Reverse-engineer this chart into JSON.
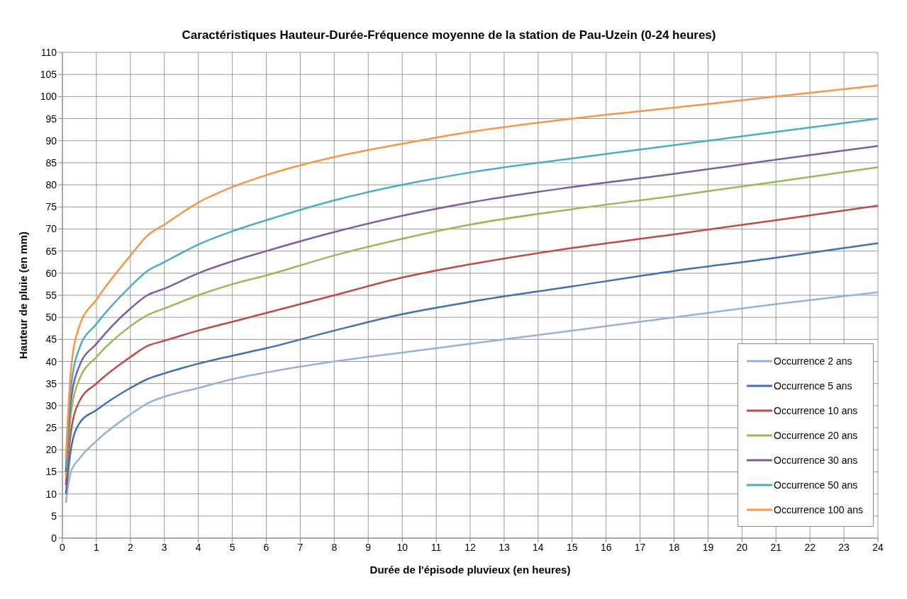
{
  "chart_data": {
    "type": "line",
    "title": "Caractéristiques Hauteur-Durée-Fréquence moyenne de la station de Pau-Uzein (0-24 heures)",
    "xlabel": "Durée de l'épisode pluvieux (en heures)",
    "ylabel": "Hauteur de pluie (en mm)",
    "x": [
      0.1,
      0.25,
      0.5,
      1,
      2,
      2.5,
      3,
      4,
      5,
      6,
      8,
      10,
      12,
      15,
      18,
      21,
      24
    ],
    "series": [
      {
        "name": "Occurrence 2 ans",
        "color": "#95b3d7",
        "values": [
          8,
          15,
          18,
          22,
          28,
          30.5,
          32,
          34,
          36,
          37.5,
          40,
          42,
          44,
          47,
          50,
          53,
          55.7
        ]
      },
      {
        "name": "Occurrence 5 ans",
        "color": "#3f6fb4",
        "values": [
          10,
          20,
          26,
          29,
          34,
          36,
          37.3,
          39.5,
          41.3,
          43,
          47,
          50.7,
          53.5,
          57,
          60.5,
          63.5,
          66.8
        ]
      },
      {
        "name": "Occurrence 10 ans",
        "color": "#be4b48",
        "values": [
          12,
          24,
          31,
          35,
          41,
          43.5,
          44.7,
          47,
          49,
          51,
          55,
          59,
          62,
          65.7,
          68.8,
          72,
          75.3
        ]
      },
      {
        "name": "Occurrence 20 ans",
        "color": "#98b954",
        "values": [
          14,
          28,
          36,
          41,
          48,
          50.5,
          52,
          55,
          57.5,
          59.5,
          64,
          67.8,
          71,
          74.5,
          77.5,
          80.7,
          84
        ]
      },
      {
        "name": "Occurrence 30 ans",
        "color": "#7d5fa0",
        "values": [
          15,
          31,
          39,
          44,
          52,
          55,
          56.5,
          60,
          62.7,
          65,
          69.3,
          73,
          76,
          79.5,
          82.5,
          85.7,
          88.8
        ]
      },
      {
        "name": "Occurrence 50 ans",
        "color": "#4bacc6",
        "values": [
          16,
          34,
          43,
          48.5,
          57,
          60.5,
          62.5,
          66.5,
          69.5,
          72,
          76.5,
          80,
          82.8,
          86,
          89,
          92,
          95
        ]
      },
      {
        "name": "Occurrence 100 ans",
        "color": "#f79646",
        "values": [
          18,
          38,
          48,
          54,
          64,
          68.5,
          71,
          76,
          79.5,
          82.2,
          86.3,
          89.3,
          92,
          95,
          97.5,
          100,
          102.5
        ]
      }
    ],
    "xlim": [
      0,
      24
    ],
    "xticks": [
      0,
      1,
      2,
      3,
      4,
      5,
      6,
      7,
      8,
      9,
      10,
      11,
      12,
      13,
      14,
      15,
      16,
      17,
      18,
      19,
      20,
      21,
      22,
      23,
      24
    ],
    "ylim": [
      0,
      110
    ],
    "yticks": [
      0,
      5,
      10,
      15,
      20,
      25,
      30,
      35,
      40,
      45,
      50,
      55,
      60,
      65,
      70,
      75,
      80,
      85,
      90,
      95,
      100,
      105,
      110
    ],
    "grid": true,
    "legend": "bottom right",
    "marker": "none",
    "line_style": "solid"
  }
}
